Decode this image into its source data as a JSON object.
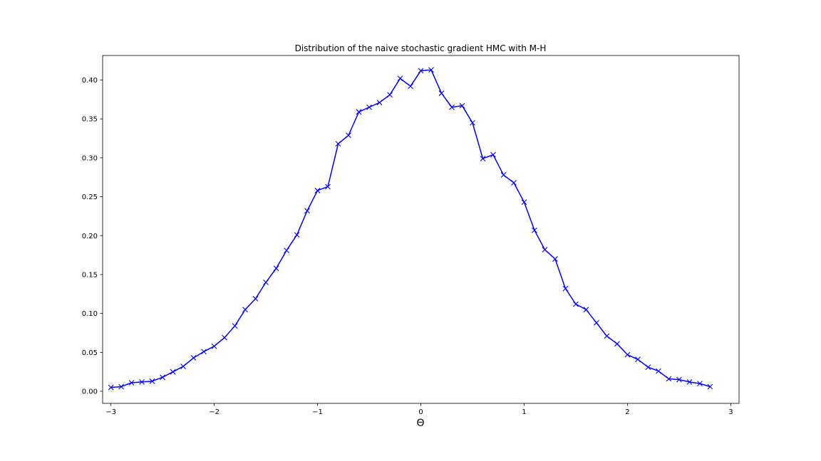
{
  "chart_data": {
    "type": "line",
    "title": "Distribution of the naive stochastic gradient HMC with M-H",
    "xlabel": "Θ",
    "ylabel": "",
    "xlim": [
      -3.08,
      3.08
    ],
    "ylim": [
      -0.0155,
      0.4315
    ],
    "xticks": [
      -3,
      -2,
      -1,
      0,
      1,
      2,
      3
    ],
    "xtick_labels": [
      "−3",
      "−2",
      "−1",
      "0",
      "1",
      "2",
      "3"
    ],
    "yticks": [
      0.0,
      0.05,
      0.1,
      0.15,
      0.2,
      0.25,
      0.3,
      0.35,
      0.4
    ],
    "ytick_labels": [
      "0.00",
      "0.05",
      "0.10",
      "0.15",
      "0.20",
      "0.25",
      "0.30",
      "0.35",
      "0.40"
    ],
    "grid": false,
    "line_color": "#0000ff",
    "marker": "x",
    "series": [
      {
        "x": [
          -3.0,
          -2.9,
          -2.8,
          -2.7,
          -2.6,
          -2.5,
          -2.4,
          -2.3,
          -2.2,
          -2.1,
          -2.0,
          -1.9,
          -1.8,
          -1.7,
          -1.6,
          -1.5,
          -1.4,
          -1.3,
          -1.2,
          -1.1,
          -1.0,
          -0.9,
          -0.8,
          -0.7,
          -0.6,
          -0.5,
          -0.4,
          -0.3,
          -0.2,
          -0.1,
          0.0,
          0.1,
          0.2,
          0.3,
          0.4,
          0.5,
          0.6,
          0.7,
          0.8,
          0.9,
          1.0,
          1.1,
          1.2,
          1.3,
          1.4,
          1.5,
          1.6,
          1.7,
          1.8,
          1.9,
          2.0,
          2.1,
          2.2,
          2.3,
          2.4,
          2.5,
          2.6,
          2.7,
          2.8
        ],
        "y": [
          0.005,
          0.006,
          0.011,
          0.012,
          0.013,
          0.018,
          0.025,
          0.032,
          0.043,
          0.051,
          0.058,
          0.069,
          0.084,
          0.105,
          0.119,
          0.14,
          0.158,
          0.181,
          0.201,
          0.232,
          0.258,
          0.263,
          0.318,
          0.329,
          0.359,
          0.365,
          0.371,
          0.381,
          0.402,
          0.392,
          0.412,
          0.413,
          0.383,
          0.365,
          0.367,
          0.345,
          0.299,
          0.304,
          0.278,
          0.268,
          0.243,
          0.207,
          0.182,
          0.17,
          0.132,
          0.112,
          0.105,
          0.088,
          0.071,
          0.061,
          0.047,
          0.041,
          0.031,
          0.026,
          0.016,
          0.015,
          0.012,
          0.01,
          0.006
        ]
      }
    ]
  }
}
